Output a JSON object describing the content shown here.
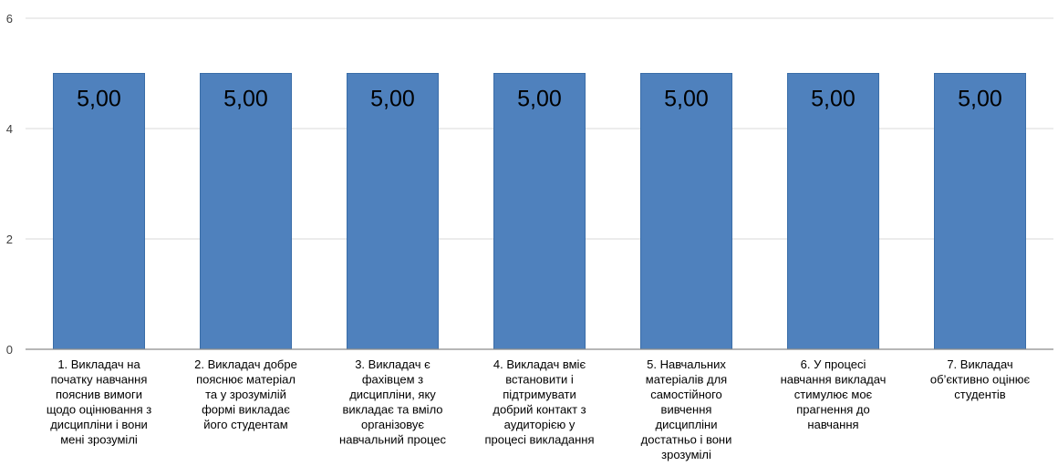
{
  "chart_data": {
    "type": "bar",
    "categories": [
      "1. Викладач на початку навчання пояснив вимоги щодо оцінювання з дисципліни і вони мені зрозумілі",
      "2. Викладач добре пояснює матеріал та у зрозумілій формі викладає його студентам",
      "3. Викладач є фахівцем з дисципліни, яку викладає та вміло організовує навчальний процес",
      "4. Викладач вміє встановити і підтримувати добрий контакт з аудиторією у процесі викладання",
      "5. Навчальних матеріалів для самостійного вивчення дисципліни достатньо і вони зрозумілі",
      "6.  У процесі навчання викладач стимулює моє прагнення до навчання",
      "7. Викладач об’єктивно оцінює студентів"
    ],
    "category_lines": [
      [
        "1. Викладач на",
        "початку навчання",
        "пояснив вимоги",
        "щодо оцінювання з",
        "дисципліни і вони",
        "мені зрозумілі"
      ],
      [
        "2. Викладач добре",
        "пояснює матеріал",
        "та у зрозумілій",
        "формі викладає",
        "його студентам"
      ],
      [
        "3. Викладач є",
        "фахівцем з",
        "дисципліни, яку",
        "викладає та вміло",
        "організовує",
        "навчальний процес"
      ],
      [
        "4. Викладач вміє",
        "встановити і",
        "підтримувати",
        "добрий контакт з",
        "аудиторією у",
        "процесі викладання"
      ],
      [
        "5. Навчальних",
        "матеріалів для",
        "самостійного",
        "вивчення",
        "дисципліни",
        "достатньо і вони",
        "зрозумілі"
      ],
      [
        "6.  У процесі",
        "навчання викладач",
        "стимулює моє",
        "прагнення до",
        "навчання"
      ],
      [
        "7. Викладач",
        "об’єктивно оцінює",
        "студентів"
      ]
    ],
    "values": [
      5,
      5,
      5,
      5,
      5,
      5,
      5
    ],
    "data_labels": [
      "5,00",
      "5,00",
      "5,00",
      "5,00",
      "5,00",
      "5,00",
      "5,00"
    ],
    "ylim": [
      0,
      6
    ],
    "yticks": [
      0,
      2,
      4,
      6
    ],
    "ytick_labels": [
      "0",
      "2",
      "4",
      "6"
    ],
    "grid": true,
    "bar_color": "#4f81bd",
    "bar_edge_color": "#3a6da8",
    "title": "",
    "xlabel": "",
    "ylabel": ""
  }
}
